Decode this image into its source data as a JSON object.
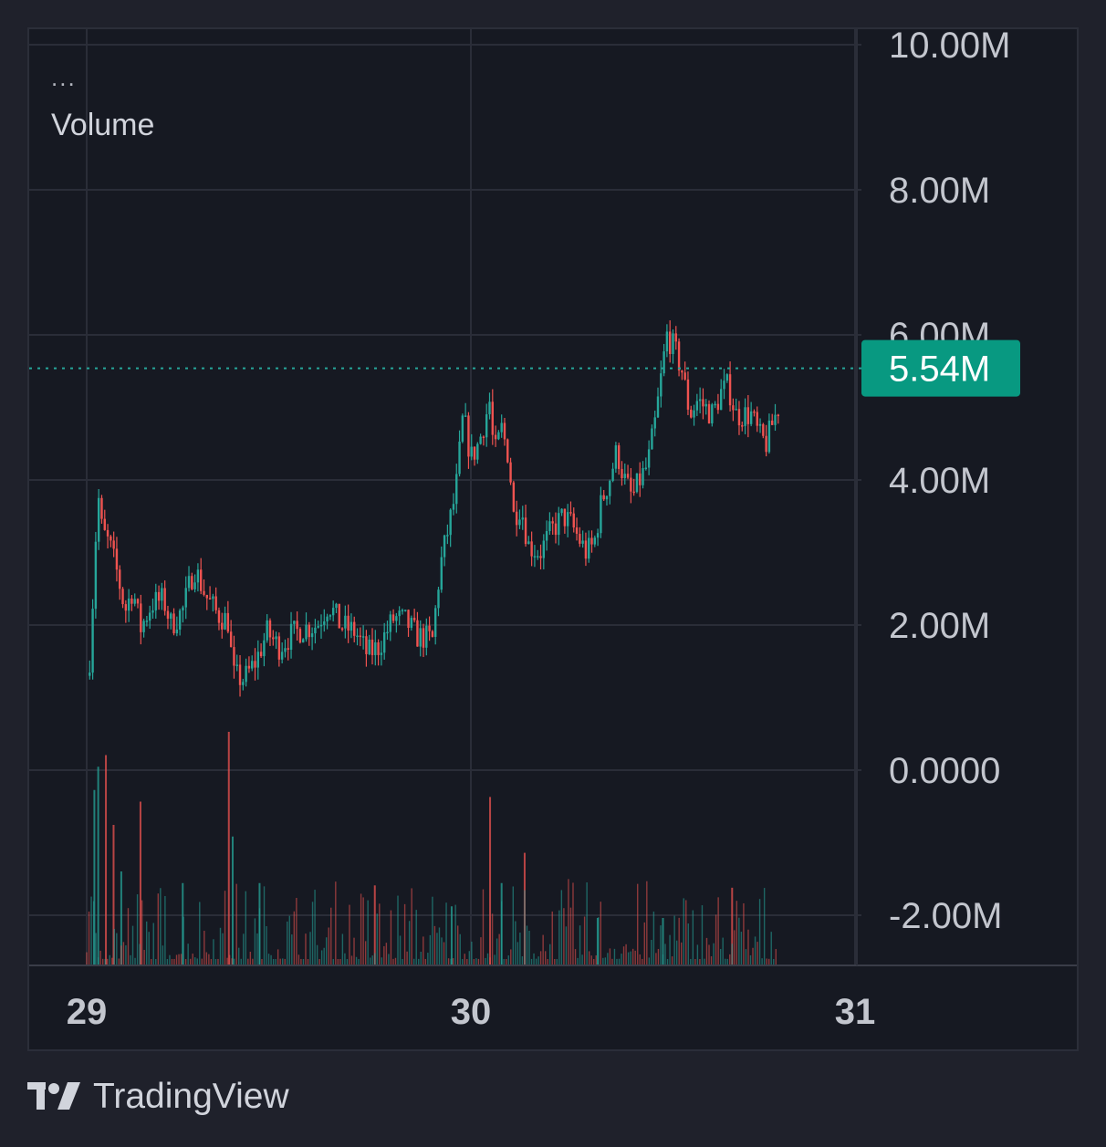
{
  "legend": {
    "menu": "...",
    "title": "Volume"
  },
  "brand": {
    "name": "TradingView"
  },
  "colors": {
    "up": "#26a69a",
    "down": "#ef5350",
    "grid": "#2a2d38",
    "axis_text": "#c3c6ce",
    "last_price_bg": "#089981",
    "background": "#161922"
  },
  "chart_data": {
    "type": "candlestick",
    "series_label": "Volume",
    "y_axis": {
      "position": "right",
      "ticks": [
        {
          "value": 10000000,
          "label": "10.00M"
        },
        {
          "value": 8000000,
          "label": "8.00M"
        },
        {
          "value": 6000000,
          "label": "6.00M"
        },
        {
          "value": 4000000,
          "label": "4.00M"
        },
        {
          "value": 2000000,
          "label": "2.00M"
        },
        {
          "value": 0,
          "label": "0.0000"
        },
        {
          "value": -2000000,
          "label": "-2.00M"
        }
      ]
    },
    "x_axis": {
      "ticks": [
        {
          "day": 29,
          "label": "29"
        },
        {
          "day": 30,
          "label": "30"
        },
        {
          "day": 31,
          "label": "31"
        }
      ]
    },
    "last_value": {
      "value": 5540000,
      "label": "5.54M"
    },
    "grid": true,
    "price_path": [
      [
        29.0,
        1300000
      ],
      [
        29.01,
        1600000
      ],
      [
        29.02,
        2900000
      ],
      [
        29.03,
        3800000
      ],
      [
        29.04,
        3300000
      ],
      [
        29.06,
        3100000
      ],
      [
        29.08,
        2700000
      ],
      [
        29.1,
        2200000
      ],
      [
        29.12,
        2500000
      ],
      [
        29.14,
        1950000
      ],
      [
        29.17,
        2300000
      ],
      [
        29.2,
        2350000
      ],
      [
        29.22,
        2000000
      ],
      [
        29.25,
        2200000
      ],
      [
        29.28,
        2800000
      ],
      [
        29.31,
        2400000
      ],
      [
        29.34,
        2150000
      ],
      [
        29.37,
        2050000
      ],
      [
        29.38,
        1300000
      ],
      [
        29.41,
        1250000
      ],
      [
        29.44,
        1500000
      ],
      [
        29.47,
        1900000
      ],
      [
        29.5,
        1700000
      ],
      [
        29.53,
        1850000
      ],
      [
        29.56,
        1950000
      ],
      [
        29.6,
        2000000
      ],
      [
        29.63,
        2300000
      ],
      [
        29.66,
        2000000
      ],
      [
        29.7,
        1900000
      ],
      [
        29.73,
        1600000
      ],
      [
        29.76,
        1700000
      ],
      [
        29.8,
        2100000
      ],
      [
        29.83,
        2050000
      ],
      [
        29.86,
        1850000
      ],
      [
        29.9,
        1800000
      ],
      [
        29.92,
        2800000
      ],
      [
        29.94,
        3300000
      ],
      [
        29.96,
        3800000
      ],
      [
        29.98,
        4900000
      ],
      [
        30.0,
        4300000
      ],
      [
        30.02,
        4500000
      ],
      [
        30.05,
        5100000
      ],
      [
        30.06,
        4300000
      ],
      [
        30.08,
        4700000
      ],
      [
        30.1,
        4300000
      ],
      [
        30.11,
        3500000
      ],
      [
        30.13,
        3650000
      ],
      [
        30.15,
        3100000
      ],
      [
        30.18,
        3000000
      ],
      [
        30.21,
        3300000
      ],
      [
        30.24,
        3500000
      ],
      [
        30.26,
        3400000
      ],
      [
        30.28,
        3200000
      ],
      [
        30.3,
        3000000
      ],
      [
        30.32,
        3100000
      ],
      [
        30.34,
        3700000
      ],
      [
        30.36,
        4000000
      ],
      [
        30.38,
        4400000
      ],
      [
        30.4,
        4000000
      ],
      [
        30.42,
        3750000
      ],
      [
        30.44,
        4000000
      ],
      [
        30.46,
        4200000
      ],
      [
        30.48,
        4800000
      ],
      [
        30.5,
        5600000
      ],
      [
        30.51,
        6000000
      ],
      [
        30.53,
        5800000
      ],
      [
        30.55,
        5500000
      ],
      [
        30.57,
        4900000
      ],
      [
        30.59,
        5100000
      ],
      [
        30.61,
        5000000
      ],
      [
        30.63,
        4900000
      ],
      [
        30.65,
        5200000
      ],
      [
        30.67,
        5300000
      ],
      [
        30.69,
        4900000
      ],
      [
        30.71,
        4900000
      ],
      [
        30.73,
        4900000
      ],
      [
        30.75,
        4600000
      ],
      [
        30.77,
        4500000
      ],
      [
        30.78,
        4700000
      ],
      [
        30.8,
        5000000
      ],
      [
        30.8,
        5540000
      ]
    ],
    "volume_bars": [
      {
        "x": 29.02,
        "v": 0.75,
        "dir": "up"
      },
      {
        "x": 29.03,
        "v": 0.85,
        "dir": "up"
      },
      {
        "x": 29.05,
        "v": 0.9,
        "dir": "down"
      },
      {
        "x": 29.07,
        "v": 0.6,
        "dir": "down"
      },
      {
        "x": 29.09,
        "v": 0.4,
        "dir": "up"
      },
      {
        "x": 29.14,
        "v": 0.7,
        "dir": "down"
      },
      {
        "x": 29.25,
        "v": 0.35,
        "dir": "up"
      },
      {
        "x": 29.37,
        "v": 1.0,
        "dir": "down"
      },
      {
        "x": 29.38,
        "v": 0.55,
        "dir": "up"
      },
      {
        "x": 29.45,
        "v": 0.35,
        "dir": "up"
      },
      {
        "x": 29.75,
        "v": 0.34,
        "dir": "down"
      },
      {
        "x": 29.95,
        "v": 0.25,
        "dir": "up"
      },
      {
        "x": 30.05,
        "v": 0.72,
        "dir": "down"
      },
      {
        "x": 30.08,
        "v": 0.35,
        "dir": "up"
      },
      {
        "x": 30.14,
        "v": 0.48,
        "dir": "down"
      },
      {
        "x": 30.33,
        "v": 0.2,
        "dir": "up"
      },
      {
        "x": 30.5,
        "v": 0.2,
        "dir": "up"
      },
      {
        "x": 30.68,
        "v": 0.33,
        "dir": "down"
      }
    ]
  }
}
